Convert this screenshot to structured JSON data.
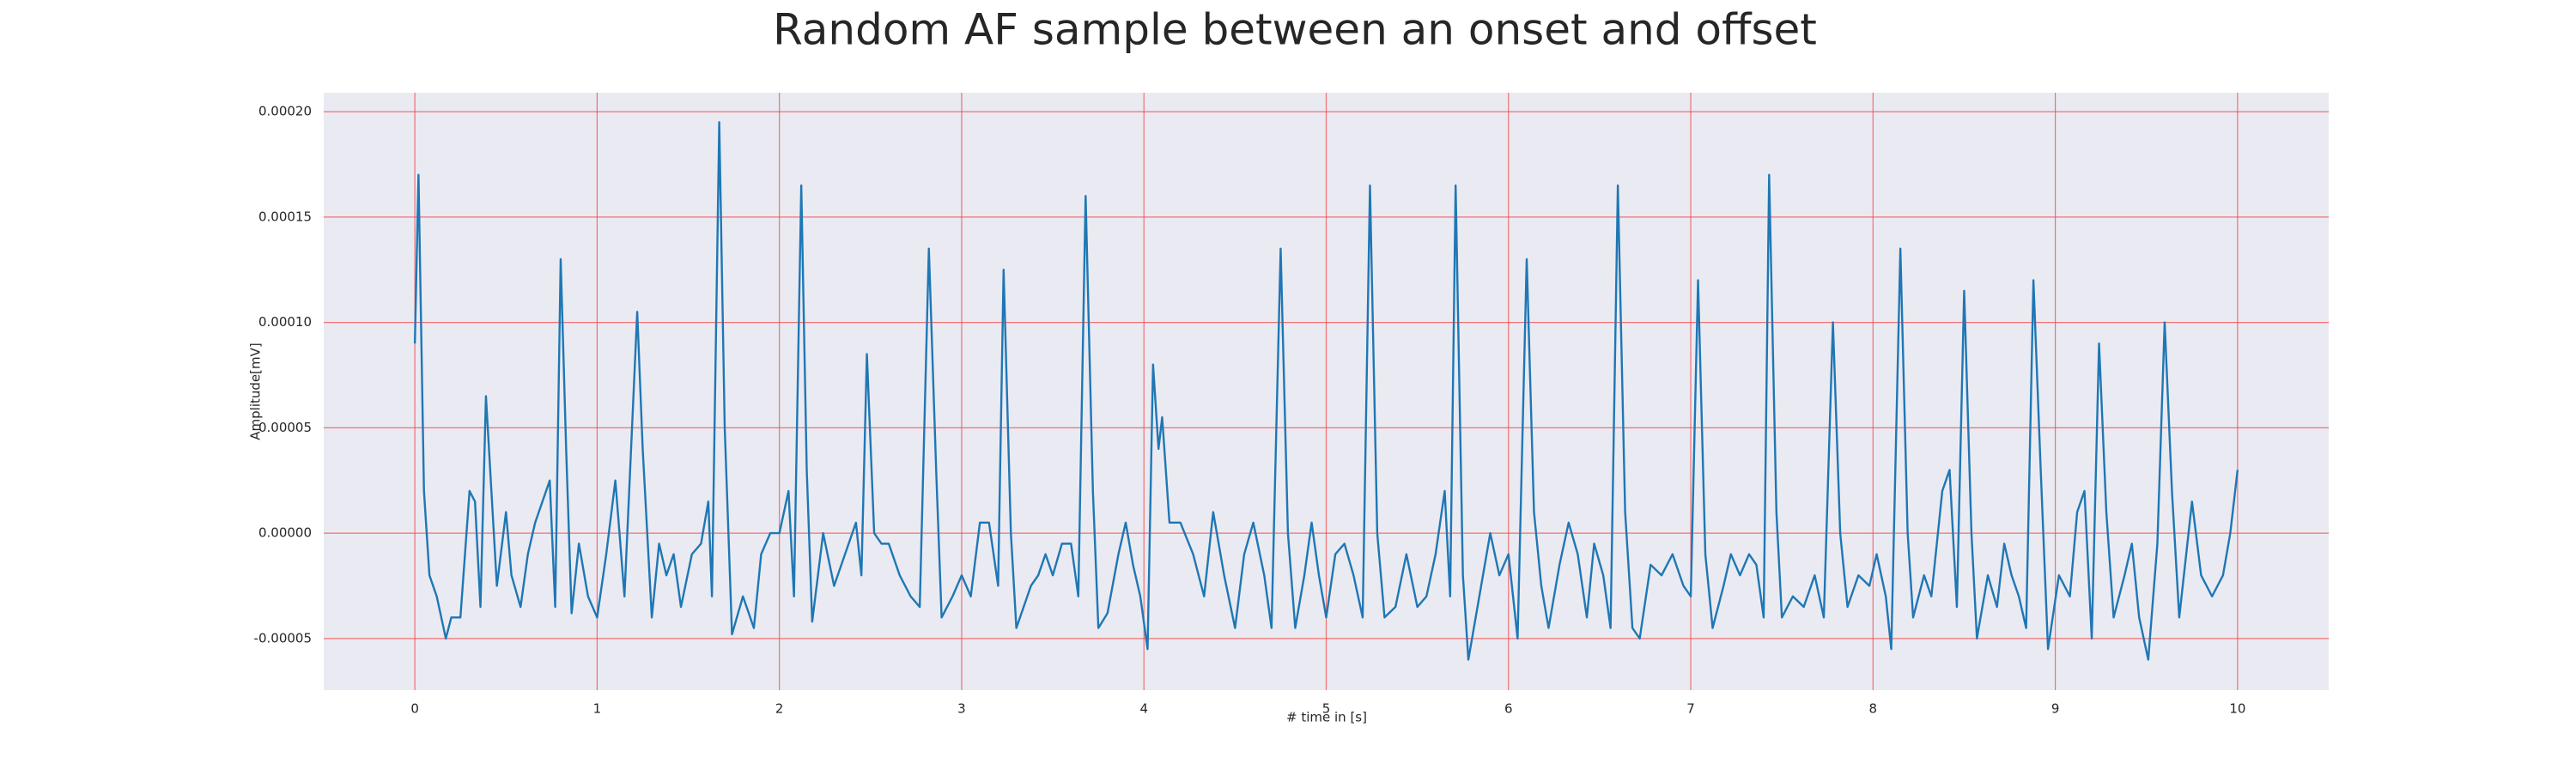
{
  "chart_data": {
    "type": "line",
    "title": "Random AF sample between an onset and offset",
    "x_label": "# time in [s]",
    "y_label": "Amplitude[mV]",
    "xlim": [
      -0.5,
      10.5
    ],
    "ylim": [
      -7.45e-05,
      0.000209
    ],
    "xticks": [
      0,
      1,
      2,
      3,
      4,
      5,
      6,
      7,
      8,
      9,
      10
    ],
    "yticks": [
      {
        "value": -5e-05,
        "label": "-0.00005"
      },
      {
        "value": 0,
        "label": "0.00000"
      },
      {
        "value": 5e-05,
        "label": "0.00005"
      },
      {
        "value": 0.0001,
        "label": "0.00010"
      },
      {
        "value": 0.00015,
        "label": "0.00015"
      },
      {
        "value": 0.0002,
        "label": "0.00020"
      }
    ],
    "grid": true,
    "grid_color": "#f04848",
    "background": "#eaeaf2",
    "x": [
      0,
      0.02,
      0.05,
      0.08,
      0.12,
      0.17,
      0.2,
      0.25,
      0.3,
      0.33,
      0.36,
      0.39,
      0.42,
      0.45,
      0.5,
      0.53,
      0.58,
      0.62,
      0.66,
      0.7,
      0.74,
      0.77,
      0.8,
      0.83,
      0.86,
      0.9,
      0.95,
      1.0,
      1.05,
      1.1,
      1.15,
      1.22,
      1.25,
      1.3,
      1.34,
      1.38,
      1.42,
      1.46,
      1.52,
      1.57,
      1.61,
      1.63,
      1.67,
      1.7,
      1.74,
      1.8,
      1.86,
      1.9,
      1.95,
      2.0,
      2.05,
      2.08,
      2.12,
      2.15,
      2.18,
      2.24,
      2.3,
      2.36,
      2.42,
      2.45,
      2.48,
      2.52,
      2.56,
      2.6,
      2.66,
      2.72,
      2.77,
      2.82,
      2.86,
      2.89,
      2.95,
      3.0,
      3.05,
      3.1,
      3.15,
      3.2,
      3.23,
      3.27,
      3.3,
      3.38,
      3.42,
      3.46,
      3.5,
      3.55,
      3.6,
      3.64,
      3.68,
      3.72,
      3.75,
      3.8,
      3.86,
      3.9,
      3.94,
      3.98,
      4.02,
      4.05,
      4.08,
      4.1,
      4.14,
      4.2,
      4.27,
      4.33,
      4.38,
      4.44,
      4.5,
      4.55,
      4.6,
      4.66,
      4.7,
      4.75,
      4.79,
      4.83,
      4.88,
      4.92,
      4.96,
      5.0,
      5.05,
      5.1,
      5.15,
      5.2,
      5.24,
      5.28,
      5.32,
      5.38,
      5.44,
      5.5,
      5.55,
      5.6,
      5.65,
      5.68,
      5.71,
      5.75,
      5.78,
      5.84,
      5.9,
      5.95,
      6.0,
      6.05,
      6.1,
      6.14,
      6.18,
      6.22,
      6.28,
      6.33,
      6.38,
      6.43,
      6.47,
      6.52,
      6.56,
      6.6,
      6.64,
      6.68,
      6.72,
      6.78,
      6.84,
      6.9,
      6.96,
      7.0,
      7.04,
      7.08,
      7.12,
      7.18,
      7.22,
      7.27,
      7.32,
      7.36,
      7.4,
      7.43,
      7.47,
      7.5,
      7.56,
      7.62,
      7.68,
      7.73,
      7.78,
      7.82,
      7.86,
      7.92,
      7.98,
      8.02,
      8.07,
      8.1,
      8.15,
      8.19,
      8.22,
      8.28,
      8.32,
      8.38,
      8.42,
      8.46,
      8.5,
      8.54,
      8.57,
      8.63,
      8.68,
      8.72,
      8.76,
      8.8,
      8.84,
      8.88,
      8.92,
      8.96,
      9.02,
      9.08,
      9.12,
      9.16,
      9.2,
      9.24,
      9.28,
      9.32,
      9.38,
      9.42,
      9.46,
      9.51,
      9.56,
      9.6,
      9.64,
      9.68,
      9.75,
      9.8,
      9.86,
      9.92,
      9.96,
      10.0
    ],
    "series": [
      {
        "color": "#1f77b4",
        "values": [
          9e-05,
          0.00017,
          2e-05,
          -2e-05,
          -3e-05,
          -5e-05,
          -4e-05,
          -4e-05,
          2e-05,
          1.5e-05,
          -3.5e-05,
          6.5e-05,
          2e-05,
          -2.5e-05,
          1e-05,
          -2e-05,
          -3.5e-05,
          -1e-05,
          5e-06,
          1.5e-05,
          2.5e-05,
          -3.5e-05,
          0.00013,
          4e-05,
          -3.8e-05,
          -5e-06,
          -3e-05,
          -4e-05,
          -1e-05,
          2.5e-05,
          -3e-05,
          0.000105,
          4e-05,
          -4e-05,
          -5e-06,
          -2e-05,
          -1e-05,
          -3.5e-05,
          -1e-05,
          -5e-06,
          1.5e-05,
          -3e-05,
          0.000195,
          5e-05,
          -4.8e-05,
          -3e-05,
          -4.5e-05,
          -1e-05,
          0,
          0,
          2e-05,
          -3e-05,
          0.000165,
          3e-05,
          -4.2e-05,
          0,
          -2.5e-05,
          -1e-05,
          5e-06,
          -2e-05,
          8.5e-05,
          0,
          -5e-06,
          -5e-06,
          -2e-05,
          -3e-05,
          -3.5e-05,
          0.000135,
          3e-05,
          -4e-05,
          -3e-05,
          -2e-05,
          -3e-05,
          5e-06,
          5e-06,
          -2.5e-05,
          0.000125,
          0,
          -4.5e-05,
          -2.5e-05,
          -2e-05,
          -1e-05,
          -2e-05,
          -5e-06,
          -5e-06,
          -3e-05,
          0.00016,
          2e-05,
          -4.5e-05,
          -3.8e-05,
          -1e-05,
          5e-06,
          -1.5e-05,
          -3e-05,
          -5.5e-05,
          8e-05,
          4e-05,
          5.5e-05,
          5e-06,
          5e-06,
          -1e-05,
          -3e-05,
          1e-05,
          -2e-05,
          -4.5e-05,
          -1e-05,
          5e-06,
          -2e-05,
          -4.5e-05,
          0.000135,
          0,
          -4.5e-05,
          -2e-05,
          5e-06,
          -2e-05,
          -4e-05,
          -1e-05,
          -5e-06,
          -2e-05,
          -4e-05,
          0.000165,
          0,
          -4e-05,
          -3.5e-05,
          -1e-05,
          -3.5e-05,
          -3e-05,
          -1e-05,
          2e-05,
          -3e-05,
          0.000165,
          -2e-05,
          -6e-05,
          -3e-05,
          0,
          -2e-05,
          -1e-05,
          -5e-05,
          0.00013,
          1e-05,
          -2.5e-05,
          -4.5e-05,
          -1.5e-05,
          5e-06,
          -1e-05,
          -4e-05,
          -5e-06,
          -2e-05,
          -4.5e-05,
          0.000165,
          1e-05,
          -4.5e-05,
          -5e-05,
          -1.5e-05,
          -2e-05,
          -1e-05,
          -2.5e-05,
          -3e-05,
          0.00012,
          -1e-05,
          -4.5e-05,
          -2.5e-05,
          -1e-05,
          -2e-05,
          -1e-05,
          -1.5e-05,
          -4e-05,
          0.00017,
          1e-05,
          -4e-05,
          -3e-05,
          -3.5e-05,
          -2e-05,
          -4e-05,
          0.0001,
          0,
          -3.5e-05,
          -2e-05,
          -2.5e-05,
          -1e-05,
          -3e-05,
          -5.5e-05,
          0.000135,
          0,
          -4e-05,
          -2e-05,
          -3e-05,
          2e-05,
          3e-05,
          -3.5e-05,
          0.000115,
          0,
          -5e-05,
          -2e-05,
          -3.5e-05,
          -5e-06,
          -2e-05,
          -3e-05,
          -4.5e-05,
          0.00012,
          3e-05,
          -5.5e-05,
          -2e-05,
          -3e-05,
          1e-05,
          2e-05,
          -5e-05,
          9e-05,
          1e-05,
          -4e-05,
          -2e-05,
          -5e-06,
          -4e-05,
          -6e-05,
          -5e-06,
          0.0001,
          2e-05,
          -4e-05,
          1.5e-05,
          -2e-05,
          -3e-05,
          -2e-05,
          0,
          3e-05
        ]
      }
    ]
  }
}
